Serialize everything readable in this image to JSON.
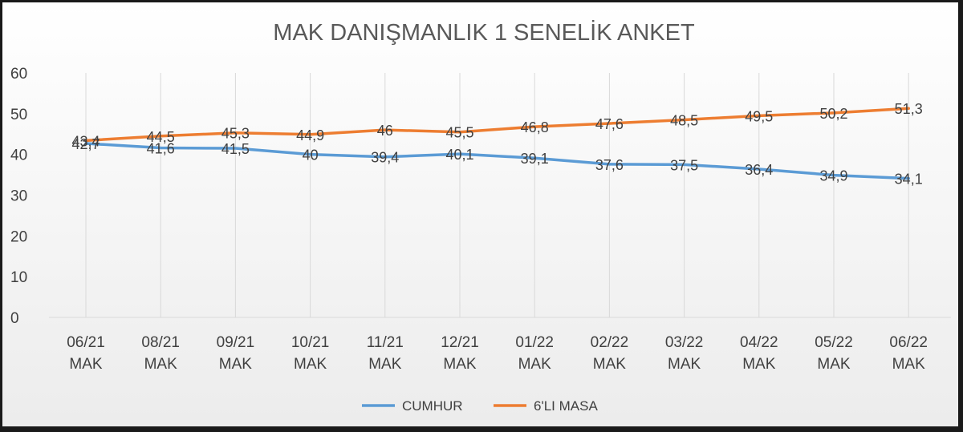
{
  "chart_data": {
    "type": "line",
    "title": "MAK DANIŞMANLIK 1 SENELİK ANKET",
    "categories": [
      [
        "06/21",
        "MAK"
      ],
      [
        "08/21",
        "MAK"
      ],
      [
        "09/21",
        "MAK"
      ],
      [
        "10/21",
        "MAK"
      ],
      [
        "11/21",
        "MAK"
      ],
      [
        "12/21",
        "MAK"
      ],
      [
        "01/22",
        "MAK"
      ],
      [
        "02/22",
        "MAK"
      ],
      [
        "03/22",
        "MAK"
      ],
      [
        "04/22",
        "MAK"
      ],
      [
        "05/22",
        "MAK"
      ],
      [
        "06/22",
        "MAK"
      ]
    ],
    "series": [
      {
        "name": "CUMHUR",
        "color": "#5b9bd5",
        "values": [
          42.7,
          41.6,
          41.5,
          40,
          39.4,
          40.1,
          39.1,
          37.6,
          37.5,
          36.4,
          34.9,
          34.1
        ],
        "labels": [
          "42,7",
          "41,6",
          "41,5",
          "40",
          "39,4",
          "40,1",
          "39,1",
          "37,6",
          "37,5",
          "36,4",
          "34,9",
          "34,1"
        ]
      },
      {
        "name": "6'LI MASA",
        "color": "#ed7d31",
        "values": [
          43.4,
          44.5,
          45.3,
          44.9,
          46,
          45.5,
          46.8,
          47.6,
          48.5,
          49.5,
          50.2,
          51.3
        ],
        "labels": [
          "43,4",
          "44,5",
          "45,3",
          "44,9",
          "46",
          "45,5",
          "46,8",
          "47,6",
          "48,5",
          "49,5",
          "50,2",
          "51,3"
        ]
      }
    ],
    "ylim": [
      0,
      60
    ],
    "yticks": [
      0,
      10,
      20,
      30,
      40,
      50,
      60
    ],
    "grid": "vertical",
    "legend": "bottom"
  }
}
